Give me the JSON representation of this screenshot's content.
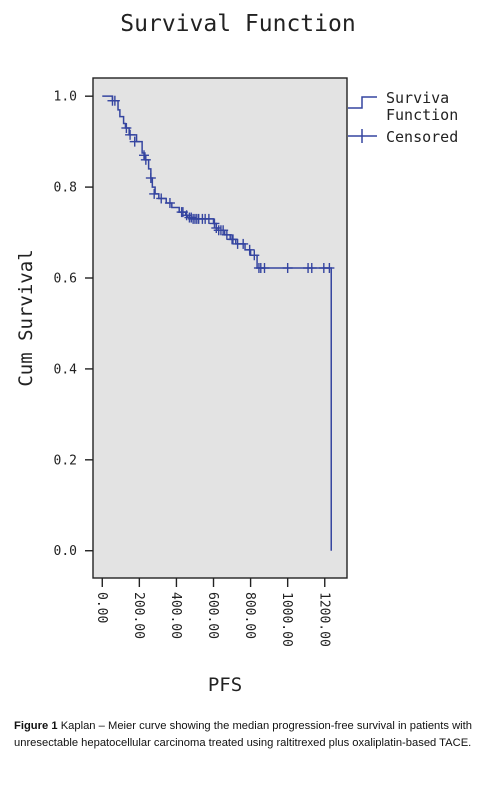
{
  "caption": {
    "label": "Figure 1",
    "text": "Kaplan – Meier curve showing the median progression-free survival in patients with unresectable hepatocellular carcinoma treated using raltitrexed plus oxaliplatin-based TACE."
  },
  "colors": {
    "series": "#3545a0",
    "plot_background": "#e3e3e3",
    "axis": "#222222",
    "text": "#222222"
  },
  "chart_data": {
    "type": "line",
    "title": "Survival Function",
    "xlabel": "PFS",
    "ylabel": "Cum Survival",
    "xlim": [
      -50,
      1320
    ],
    "ylim": [
      -0.06,
      1.04
    ],
    "x_ticks": [
      0,
      200,
      400,
      600,
      800,
      1000,
      1200
    ],
    "x_tick_labels": [
      "0.00",
      "200.00",
      "400.00",
      "600.00",
      "800.00",
      "1000.00",
      "1200.00"
    ],
    "y_ticks": [
      0.0,
      0.2,
      0.4,
      0.6,
      0.8,
      1.0
    ],
    "y_tick_labels": [
      "0.0",
      "0.2",
      "0.4",
      "0.6",
      "0.8",
      "1.0"
    ],
    "grid": false,
    "legend_position": "right",
    "legend": [
      "Surviva Function",
      "Censored"
    ],
    "series": [
      {
        "name": "Surviva Function",
        "step": true,
        "points": [
          [
            0,
            1.0
          ],
          [
            55,
            0.99
          ],
          [
            85,
            0.97
          ],
          [
            95,
            0.955
          ],
          [
            115,
            0.94
          ],
          [
            125,
            0.93
          ],
          [
            145,
            0.915
          ],
          [
            185,
            0.9
          ],
          [
            215,
            0.875
          ],
          [
            230,
            0.86
          ],
          [
            250,
            0.84
          ],
          [
            262,
            0.82
          ],
          [
            270,
            0.8
          ],
          [
            285,
            0.785
          ],
          [
            305,
            0.775
          ],
          [
            345,
            0.765
          ],
          [
            375,
            0.755
          ],
          [
            415,
            0.745
          ],
          [
            450,
            0.738
          ],
          [
            460,
            0.733
          ],
          [
            485,
            0.73
          ],
          [
            560,
            0.73
          ],
          [
            600,
            0.72
          ],
          [
            615,
            0.71
          ],
          [
            625,
            0.705
          ],
          [
            660,
            0.695
          ],
          [
            690,
            0.685
          ],
          [
            720,
            0.675
          ],
          [
            770,
            0.662
          ],
          [
            800,
            0.65
          ],
          [
            835,
            0.622
          ],
          [
            1235,
            0.622
          ],
          [
            1235,
            0.0
          ]
        ]
      },
      {
        "name": "Censored",
        "points": [
          [
            55,
            0.99
          ],
          [
            68,
            0.99
          ],
          [
            130,
            0.93
          ],
          [
            150,
            0.915
          ],
          [
            175,
            0.9
          ],
          [
            225,
            0.87
          ],
          [
            235,
            0.86
          ],
          [
            262,
            0.82
          ],
          [
            280,
            0.785
          ],
          [
            318,
            0.775
          ],
          [
            365,
            0.765
          ],
          [
            428,
            0.745
          ],
          [
            435,
            0.745
          ],
          [
            455,
            0.738
          ],
          [
            470,
            0.733
          ],
          [
            480,
            0.733
          ],
          [
            490,
            0.73
          ],
          [
            500,
            0.73
          ],
          [
            510,
            0.73
          ],
          [
            520,
            0.73
          ],
          [
            540,
            0.73
          ],
          [
            555,
            0.73
          ],
          [
            575,
            0.73
          ],
          [
            605,
            0.72
          ],
          [
            615,
            0.71
          ],
          [
            628,
            0.705
          ],
          [
            640,
            0.705
          ],
          [
            652,
            0.705
          ],
          [
            672,
            0.695
          ],
          [
            700,
            0.685
          ],
          [
            705,
            0.685
          ],
          [
            730,
            0.675
          ],
          [
            760,
            0.675
          ],
          [
            795,
            0.662
          ],
          [
            820,
            0.65
          ],
          [
            845,
            0.622
          ],
          [
            855,
            0.622
          ],
          [
            875,
            0.622
          ],
          [
            1000,
            0.622
          ],
          [
            1110,
            0.622
          ],
          [
            1130,
            0.622
          ],
          [
            1195,
            0.622
          ],
          [
            1225,
            0.622
          ]
        ]
      }
    ]
  }
}
